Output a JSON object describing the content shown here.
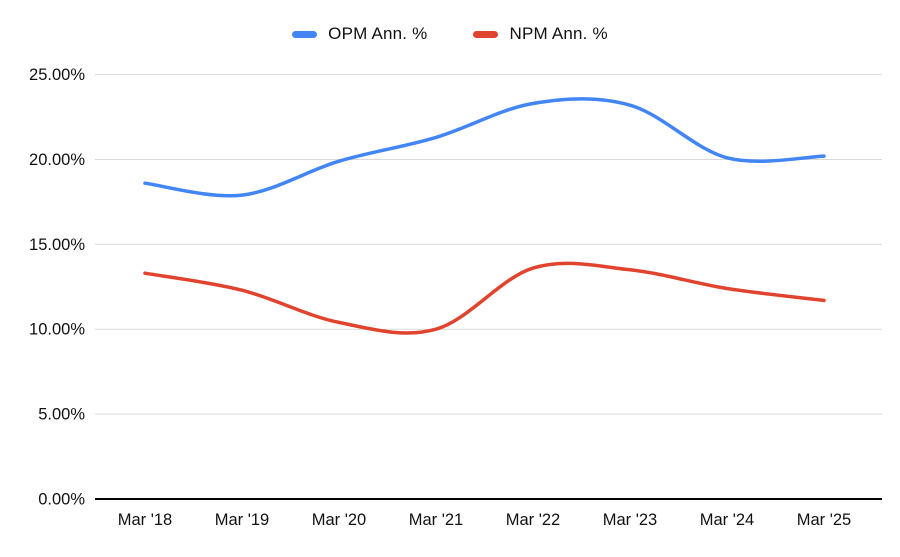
{
  "chart_data": {
    "type": "line",
    "title": "",
    "categories": [
      "Mar '18",
      "Mar '19",
      "Mar '20",
      "Mar '21",
      "Mar '22",
      "Mar '23",
      "Mar '24",
      "Mar '25"
    ],
    "series": [
      {
        "name": "OPM Ann. %",
        "color": "#4285F4",
        "values": [
          18.6,
          17.9,
          19.9,
          21.3,
          23.3,
          23.2,
          20.1,
          20.2
        ]
      },
      {
        "name": "NPM Ann. %",
        "color": "#E0442F",
        "values": [
          13.3,
          12.3,
          10.4,
          10.0,
          13.6,
          13.5,
          12.4,
          11.7
        ]
      }
    ],
    "xlabel": "",
    "ylabel": "",
    "ylim": [
      0,
      25
    ],
    "y_tick_values": [
      0,
      5,
      10,
      15,
      20,
      25
    ],
    "y_tick_labels": [
      "0.00%",
      "5.00%",
      "10.00%",
      "15.00%",
      "20.00%",
      "25.00%"
    ],
    "grid": true,
    "smooth": true,
    "legend_position": "top"
  },
  "colors": {
    "grid_line": "#d9d9d9",
    "zero_axis": "#000000",
    "tick_text": "#111111",
    "background": "#ffffff"
  }
}
